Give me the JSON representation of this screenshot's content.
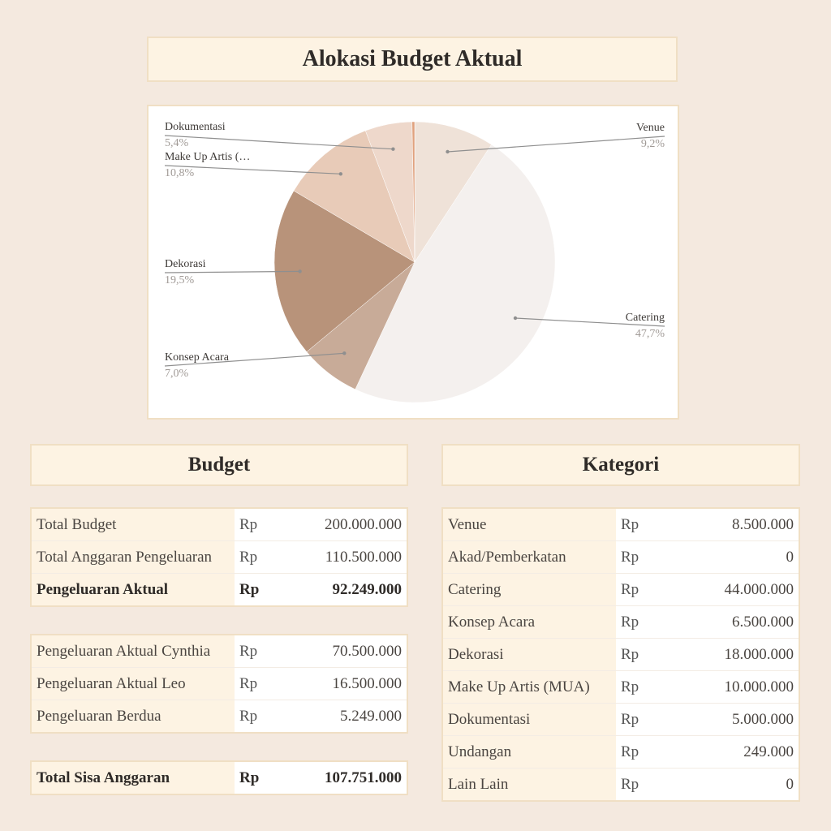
{
  "title": "Alokasi Budget Aktual",
  "chart_data": {
    "type": "pie",
    "title": "Alokasi Budget Aktual",
    "slices": [
      {
        "label": "Venue",
        "value": 9.2,
        "pct_label": "9,2%",
        "color": "#efe2d8"
      },
      {
        "label": "Catering",
        "value": 47.7,
        "pct_label": "47,7%",
        "color": "#f4f0ee"
      },
      {
        "label": "Konsep Acara",
        "value": 7.0,
        "pct_label": "7,0%",
        "color": "#c8ab98"
      },
      {
        "label": "Dekorasi",
        "value": 19.5,
        "pct_label": "19,5%",
        "color": "#b8937a"
      },
      {
        "label": "Make Up Artis (…",
        "value": 10.8,
        "pct_label": "10,8%",
        "color": "#e8cbb8"
      },
      {
        "label": "Dokumentasi",
        "value": 5.4,
        "pct_label": "5,4%",
        "color": "#eed8cb"
      },
      {
        "label": "Undangan",
        "value": 0.3,
        "pct_label": "",
        "color": "#e0a27e"
      }
    ]
  },
  "budget": {
    "header": "Budget",
    "group1": [
      {
        "label": "Total Budget",
        "cur": "Rp",
        "value": "200.000.000"
      },
      {
        "label": "Total Anggaran Pengeluaran",
        "cur": "Rp",
        "value": "110.500.000"
      },
      {
        "label": "Pengeluaran Aktual",
        "cur": "Rp",
        "value": "92.249.000"
      }
    ],
    "group2": [
      {
        "label": "Pengeluaran Aktual Cynthia",
        "cur": "Rp",
        "value": "70.500.000"
      },
      {
        "label": "Pengeluaran Aktual Leo",
        "cur": "Rp",
        "value": "16.500.000"
      },
      {
        "label": "Pengeluaran Berdua",
        "cur": "Rp",
        "value": "5.249.000"
      }
    ],
    "group3": [
      {
        "label": "Total Sisa Anggaran",
        "cur": "Rp",
        "value": "107.751.000"
      }
    ]
  },
  "kategori": {
    "header": "Kategori",
    "rows": [
      {
        "label": "Venue",
        "cur": "Rp",
        "value": "8.500.000"
      },
      {
        "label": "Akad/Pemberkatan",
        "cur": "Rp",
        "value": "0"
      },
      {
        "label": "Catering",
        "cur": "Rp",
        "value": "44.000.000"
      },
      {
        "label": "Konsep Acara",
        "cur": "Rp",
        "value": "6.500.000"
      },
      {
        "label": "Dekorasi",
        "cur": "Rp",
        "value": "18.000.000"
      },
      {
        "label": "Make Up Artis (MUA)",
        "cur": "Rp",
        "value": "10.000.000"
      },
      {
        "label": "Dokumentasi",
        "cur": "Rp",
        "value": "5.000.000"
      },
      {
        "label": "Undangan",
        "cur": "Rp",
        "value": "249.000"
      },
      {
        "label": "Lain Lain",
        "cur": "Rp",
        "value": "0"
      }
    ]
  }
}
